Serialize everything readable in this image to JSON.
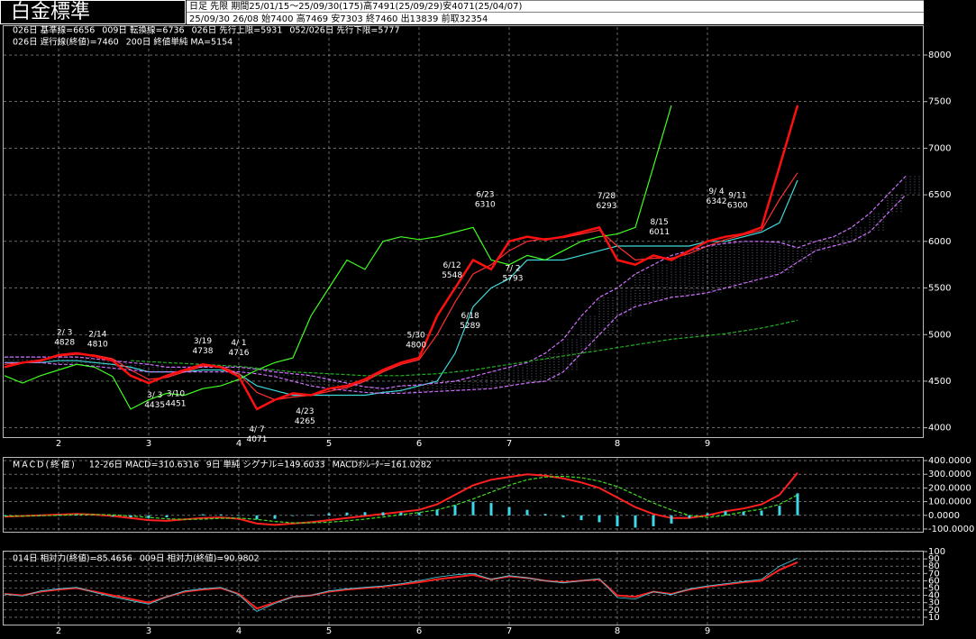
{
  "header": {
    "title": "白金標準",
    "line1": "日足 先限 期間25/01/15～25/09/30(175)高7491(25/09/29)安4071(25/04/07)",
    "line2": "25/09/30 26/08 始7400 高7469 安7303 終7460 出13839 前取32354"
  },
  "chart_data": [
    {
      "type": "line",
      "categories": [
        null,
        null,
        null,
        "2",
        null,
        null,
        null,
        null,
        "3",
        null,
        null,
        null,
        null,
        "4",
        null,
        null,
        null,
        null,
        "5",
        null,
        null,
        null,
        null,
        "6",
        null,
        null,
        null,
        null,
        "7",
        null,
        null,
        null,
        null,
        null,
        "8",
        null,
        null,
        null,
        null,
        "9",
        null,
        null,
        null,
        null,
        null,
        null,
        null,
        null,
        null,
        null,
        null
      ],
      "ylim": [
        3900,
        8300
      ],
      "yticks": [
        4000,
        4500,
        5000,
        5500,
        6000,
        6500,
        7000,
        7500,
        8000
      ],
      "grid": true,
      "series": [
        {
          "name": "026日 基準線=6656",
          "color": "#40d8d8",
          "values": [
            4700,
            4700,
            4700,
            4720,
            4720,
            4700,
            4680,
            4650,
            4600,
            4600,
            4600,
            4620,
            4620,
            4580,
            4450,
            4400,
            4350,
            4350,
            4350,
            4350,
            4350,
            4380,
            4400,
            4450,
            4500,
            4800,
            5300,
            5500,
            5600,
            5800,
            5800,
            5800,
            5850,
            5900,
            5950,
            5950,
            5950,
            5950,
            5950,
            6000,
            6000,
            6050,
            6100,
            6200,
            6656,
            null,
            null,
            null,
            null,
            null,
            null
          ]
        },
        {
          "name": "009日 転換線=6736",
          "color": "#ff3030",
          "values": [
            4680,
            4700,
            4730,
            4770,
            4790,
            4780,
            4740,
            4620,
            4520,
            4540,
            4600,
            4660,
            4660,
            4580,
            4380,
            4300,
            4330,
            4350,
            4390,
            4430,
            4500,
            4600,
            4680,
            4730,
            5000,
            5350,
            5650,
            5750,
            5900,
            6000,
            6030,
            6040,
            6080,
            6120,
            5950,
            5800,
            5820,
            5820,
            5870,
            5950,
            6020,
            6070,
            6120,
            6450,
            6736,
            null,
            null,
            null,
            null,
            null,
            null
          ]
        },
        {
          "name": "026日 先行上限=5931",
          "color": "#d070ff",
          "dashed": true,
          "values": [
            4760,
            4760,
            4760,
            4760,
            4760,
            4740,
            4720,
            4700,
            4680,
            4650,
            4650,
            4650,
            4650,
            4650,
            4630,
            4600,
            4580,
            4560,
            4520,
            4480,
            4440,
            4420,
            4450,
            4460,
            4480,
            4500,
            4550,
            4600,
            4650,
            4700,
            4800,
            4950,
            5200,
            5400,
            5500,
            5650,
            5750,
            5850,
            5900,
            5950,
            5980,
            6000,
            6000,
            5990,
            5931,
            6000,
            6050,
            6150,
            6300,
            6500,
            6700
          ]
        },
        {
          "name": "052/026日 先行下限=5777",
          "color": "#d070ff",
          "dashed": true,
          "values": [
            4700,
            4700,
            4700,
            4680,
            4680,
            4660,
            4640,
            4620,
            4600,
            4600,
            4600,
            4600,
            4600,
            4600,
            4580,
            4550,
            4500,
            4450,
            4420,
            4400,
            4380,
            4370,
            4370,
            4380,
            4390,
            4400,
            4410,
            4420,
            4450,
            4480,
            4500,
            4600,
            4800,
            5000,
            5200,
            5300,
            5350,
            5400,
            5420,
            5450,
            5500,
            5550,
            5600,
            5650,
            5777,
            5900,
            5950,
            6000,
            6100,
            6300,
            6500
          ]
        },
        {
          "name": "026日 遅行線(終値)=7460",
          "color": "#40ff20",
          "values": [
            4560,
            4480,
            4560,
            4620,
            4680,
            4650,
            4550,
            4200,
            4300,
            4370,
            4350,
            4420,
            4450,
            4520,
            4620,
            4700,
            4750,
            5200,
            5500,
            5800,
            5700,
            6000,
            6050,
            6020,
            6050,
            6100,
            6150,
            5800,
            5750,
            5850,
            5800,
            5900,
            6000,
            6050,
            6080,
            6150,
            6800,
            7460,
            null,
            null,
            null,
            null,
            null,
            null,
            null,
            null,
            null,
            null,
            null,
            null,
            null
          ]
        },
        {
          "name": "200日 終値単純 MA=5154",
          "color": "#20b020",
          "dashed": true,
          "values": [
            null,
            null,
            null,
            null,
            null,
            null,
            null,
            4720,
            4710,
            4700,
            4690,
            4680,
            4670,
            4660,
            4640,
            4620,
            4600,
            4590,
            4580,
            4570,
            4560,
            4560,
            4560,
            4570,
            4580,
            4600,
            4620,
            4650,
            4680,
            4710,
            4740,
            4770,
            4800,
            4830,
            4860,
            4890,
            4920,
            4950,
            4970,
            4990,
            5010,
            5040,
            5070,
            5110,
            5154,
            null,
            null,
            null,
            null,
            null,
            null
          ]
        },
        {
          "color": "#ff1010",
          "width": 2.5,
          "values": [
            4650,
            4700,
            4720,
            4780,
            4800,
            4770,
            4720,
            4560,
            4480,
            4560,
            4620,
            4680,
            4650,
            4550,
            4200,
            4300,
            4370,
            4350,
            4420,
            4450,
            4520,
            4620,
            4700,
            4750,
            5200,
            5500,
            5800,
            5700,
            6000,
            6050,
            6020,
            6050,
            6100,
            6150,
            5800,
            5750,
            5850,
            5800,
            5900,
            6000,
            6050,
            6080,
            6150,
            6800,
            7460,
            null,
            null,
            null,
            null,
            null,
            null
          ]
        }
      ],
      "annotations": [
        {
          "date": "2/ 3",
          "price": 4828,
          "color": "#ff3030"
        },
        {
          "date": "2/14",
          "price": 4810,
          "color": "#ff3030"
        },
        {
          "date": "3/19",
          "price": 4738,
          "color": "#ff3030"
        },
        {
          "date": "4/ 1",
          "price": 4716,
          "color": "#ff3030"
        },
        {
          "date": "5/30",
          "price": 4800,
          "color": "#ff3030"
        },
        {
          "date": "6/12",
          "price": 5548,
          "color": "#ff3030"
        },
        {
          "date": "6/23",
          "price": 6310,
          "color": "#ff3030"
        },
        {
          "date": "7/28",
          "price": 6293,
          "color": "#ff3030"
        },
        {
          "date": "8/15",
          "price": 6011,
          "color": "#ff3030"
        },
        {
          "date": "9/ 4",
          "price": 6342,
          "color": "#ff3030"
        },
        {
          "date": "9/11",
          "price": 6300,
          "color": "#ff3030"
        },
        {
          "date": "3/ 3",
          "price": 4435,
          "color": "#40d8d8",
          "below": true
        },
        {
          "date": "3/10",
          "price": 4451,
          "color": "#40d8d8",
          "below": true
        },
        {
          "date": "4/ 7",
          "price": 4071,
          "color": "#40d8d8",
          "below": true
        },
        {
          "date": "4/23",
          "price": 4265,
          "color": "#40d8d8",
          "below": true
        },
        {
          "date": "6/18",
          "price": 5289,
          "color": "#40d8d8",
          "below": true
        },
        {
          "date": "7/ 2",
          "price": 5793,
          "color": "#40d8d8",
          "below": true
        }
      ]
    },
    {
      "type": "line",
      "title": "MACD(終値)",
      "ylim": [
        -120,
        420
      ],
      "yticks": [
        {
          "value": 400,
          "label": "400.0000"
        },
        {
          "value": 300,
          "label": "300.0000"
        },
        {
          "value": 200,
          "label": "200.0000"
        },
        {
          "value": 100,
          "label": "100.0000"
        },
        {
          "value": 0,
          "label": "0.0000"
        },
        {
          "value": -100,
          "label": "-100.0000"
        }
      ],
      "grid": true,
      "series": [
        {
          "name": "12-26日 MACD=310.6316",
          "color": "#ff2020",
          "width": 2,
          "values": [
            -10,
            -5,
            0,
            5,
            10,
            5,
            -5,
            -20,
            -35,
            -40,
            -30,
            -20,
            -15,
            -25,
            -60,
            -70,
            -60,
            -50,
            -35,
            -20,
            -5,
            10,
            25,
            40,
            80,
            150,
            220,
            260,
            280,
            300,
            290,
            270,
            240,
            200,
            130,
            60,
            10,
            -20,
            -20,
            0,
            30,
            50,
            80,
            150,
            310.6316,
            null,
            null,
            null,
            null,
            null,
            null
          ]
        },
        {
          "name": "9日 単純 シグナル=149.6033",
          "color": "#40e020",
          "dashed": true,
          "values": [
            -5,
            -5,
            -3,
            0,
            5,
            6,
            4,
            -5,
            -15,
            -25,
            -30,
            -28,
            -22,
            -20,
            -30,
            -45,
            -55,
            -55,
            -50,
            -40,
            -28,
            -12,
            5,
            20,
            40,
            75,
            120,
            170,
            220,
            260,
            280,
            285,
            275,
            250,
            210,
            150,
            90,
            40,
            0,
            -15,
            0,
            25,
            45,
            80,
            149.6033,
            null,
            null,
            null,
            null,
            null,
            null
          ]
        },
        {
          "name": "MACDｵｼﾚｰﾀｰ=161.0282",
          "color": "#40d8e8",
          "type": "bar",
          "values": [
            -5,
            0,
            3,
            5,
            5,
            -1,
            -9,
            -15,
            -20,
            -15,
            0,
            8,
            7,
            -5,
            -30,
            -25,
            -5,
            5,
            15,
            20,
            23,
            22,
            20,
            20,
            40,
            75,
            100,
            90,
            60,
            40,
            10,
            -15,
            -35,
            -50,
            -80,
            -90,
            -80,
            -60,
            -20,
            15,
            30,
            25,
            35,
            70,
            161.0282,
            null,
            null,
            null,
            null,
            null,
            null
          ]
        }
      ]
    },
    {
      "type": "line",
      "categories": [
        null,
        null,
        null,
        "2",
        null,
        null,
        null,
        null,
        "3",
        null,
        null,
        null,
        null,
        "4",
        null,
        null,
        null,
        null,
        "5",
        null,
        null,
        null,
        null,
        "6",
        null,
        null,
        null,
        null,
        "7",
        null,
        null,
        null,
        null,
        null,
        "8",
        null,
        null,
        null,
        null,
        "9",
        null,
        null,
        null,
        null,
        null,
        null,
        null,
        null,
        null,
        null,
        null
      ],
      "ylim": [
        0,
        100
      ],
      "yticks": [
        100,
        90,
        80,
        70,
        60,
        50,
        40,
        30,
        20,
        10
      ],
      "grid": true,
      "series": [
        {
          "name": "014日 相対力(終値)=85.4656",
          "color": "#ff2020",
          "width": 2,
          "values": [
            42,
            40,
            45,
            48,
            50,
            45,
            40,
            35,
            30,
            38,
            45,
            48,
            50,
            42,
            22,
            30,
            38,
            40,
            45,
            48,
            50,
            52,
            55,
            58,
            62,
            65,
            68,
            62,
            66,
            64,
            60,
            58,
            60,
            62,
            40,
            38,
            45,
            42,
            48,
            52,
            55,
            58,
            60,
            75,
            85.4656,
            null,
            null,
            null,
            null,
            null,
            null
          ]
        },
        {
          "name": "009日 相対力(終値)=90.9802",
          "color": "#40d8e8",
          "width": 0.8,
          "values": [
            42,
            39,
            46,
            49,
            51,
            44,
            38,
            33,
            28,
            38,
            46,
            49,
            51,
            41,
            18,
            29,
            38,
            40,
            46,
            49,
            51,
            53,
            56,
            60,
            65,
            68,
            70,
            62,
            67,
            64,
            60,
            57,
            60,
            63,
            37,
            35,
            45,
            41,
            49,
            53,
            56,
            59,
            62,
            80,
            90.9802,
            null,
            null,
            null,
            null,
            null,
            null
          ]
        }
      ]
    }
  ]
}
